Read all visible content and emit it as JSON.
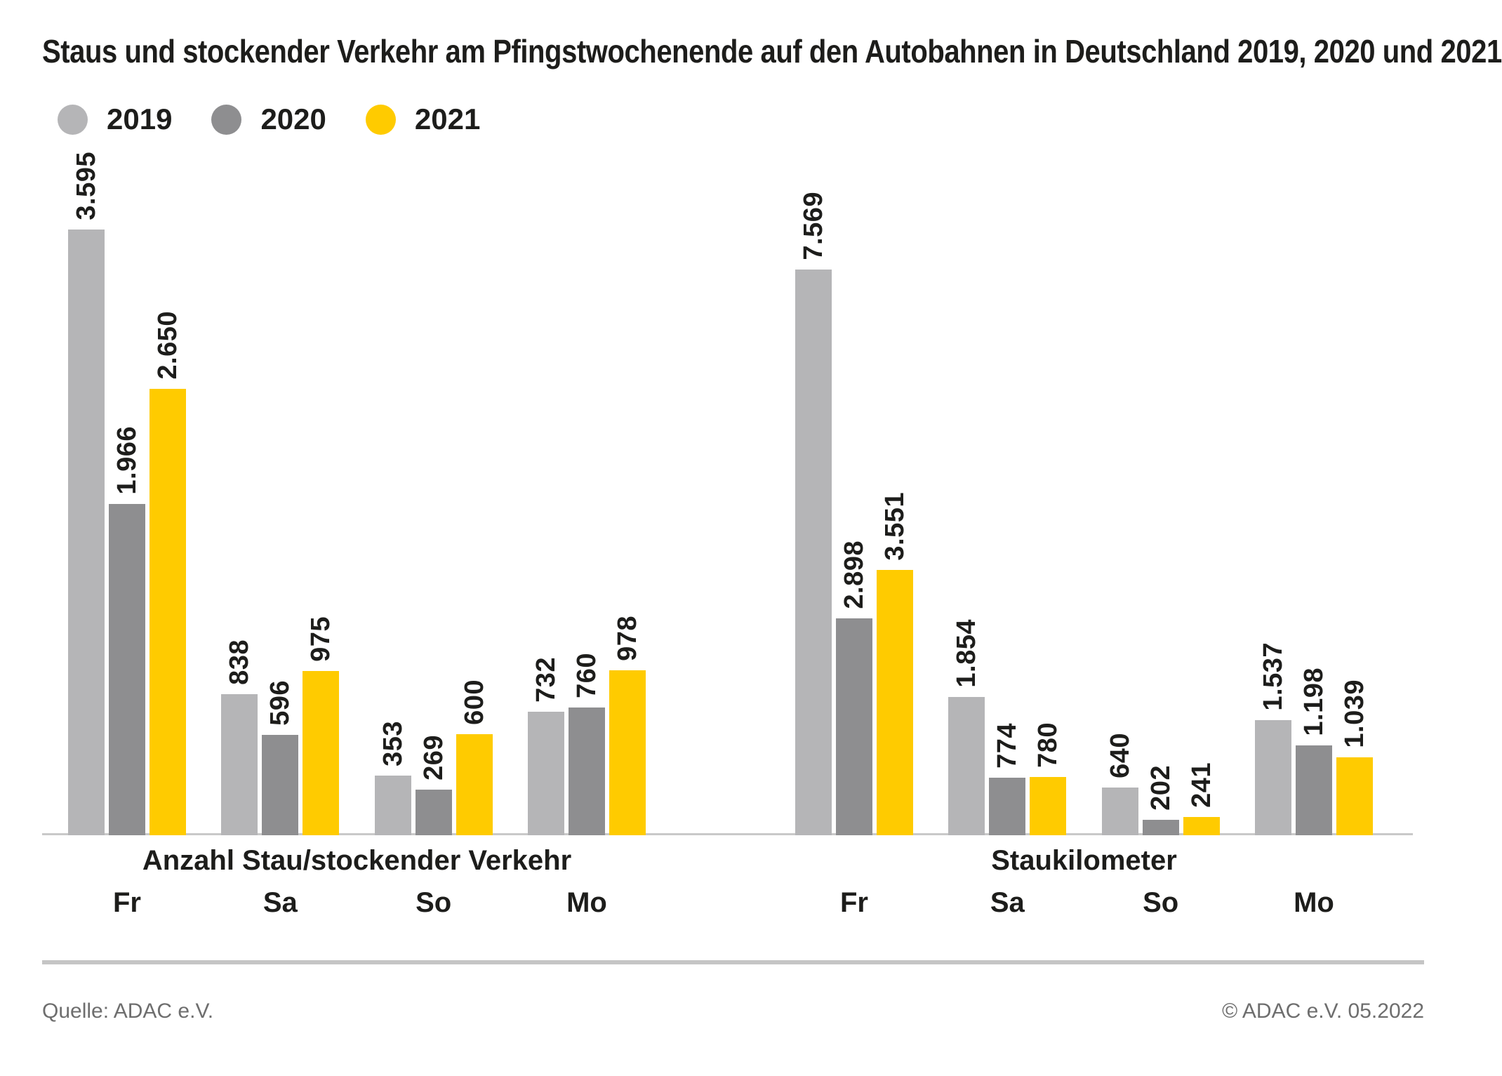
{
  "title": "Staus und stockender Verkehr am Pfingstwochenende auf den Autobahnen in Deutschland 2019, 2020 und 2021",
  "legend": [
    {
      "label": "2019",
      "color": "#b5b5b7"
    },
    {
      "label": "2020",
      "color": "#8e8e90"
    },
    {
      "label": "2021",
      "color": "#ffcb00"
    }
  ],
  "footer": {
    "source": "Quelle: ADAC e.V.",
    "copyright": "© ADAC e.V. 05.2022"
  },
  "chart_data": [
    {
      "type": "bar",
      "title": "Anzahl Stau/stockender Verkehr",
      "categories": [
        "Fr",
        "Sa",
        "So",
        "Mo"
      ],
      "series": [
        {
          "name": "2019",
          "values": [
            3595,
            838,
            353,
            732
          ],
          "labels": [
            "3.595",
            "838",
            "353",
            "732"
          ]
        },
        {
          "name": "2020",
          "values": [
            1966,
            596,
            269,
            760
          ],
          "labels": [
            "1.966",
            "596",
            "269",
            "760"
          ]
        },
        {
          "name": "2021",
          "values": [
            2650,
            975,
            600,
            978
          ],
          "labels": [
            "2.650",
            "975",
            "600",
            "978"
          ]
        }
      ],
      "ylim": [
        0,
        3600
      ],
      "grid": false,
      "legend_position": "top-left",
      "value_labels": "rotated-90-above-bars"
    },
    {
      "type": "bar",
      "title": "Staukilometer",
      "categories": [
        "Fr",
        "Sa",
        "So",
        "Mo"
      ],
      "series": [
        {
          "name": "2019",
          "values": [
            7569,
            1854,
            640,
            1537
          ],
          "labels": [
            "7.569",
            "1.854",
            "640",
            "1.537"
          ]
        },
        {
          "name": "2020",
          "values": [
            2898,
            774,
            202,
            1198
          ],
          "labels": [
            "2.898",
            "774",
            "202",
            "1.198"
          ]
        },
        {
          "name": "2021",
          "values": [
            3551,
            780,
            241,
            1039
          ],
          "labels": [
            "3.551",
            "780",
            "241",
            "1.039"
          ]
        }
      ],
      "ylim": [
        0,
        7600
      ],
      "grid": false,
      "legend_position": "top-left",
      "value_labels": "rotated-90-above-bars"
    }
  ]
}
